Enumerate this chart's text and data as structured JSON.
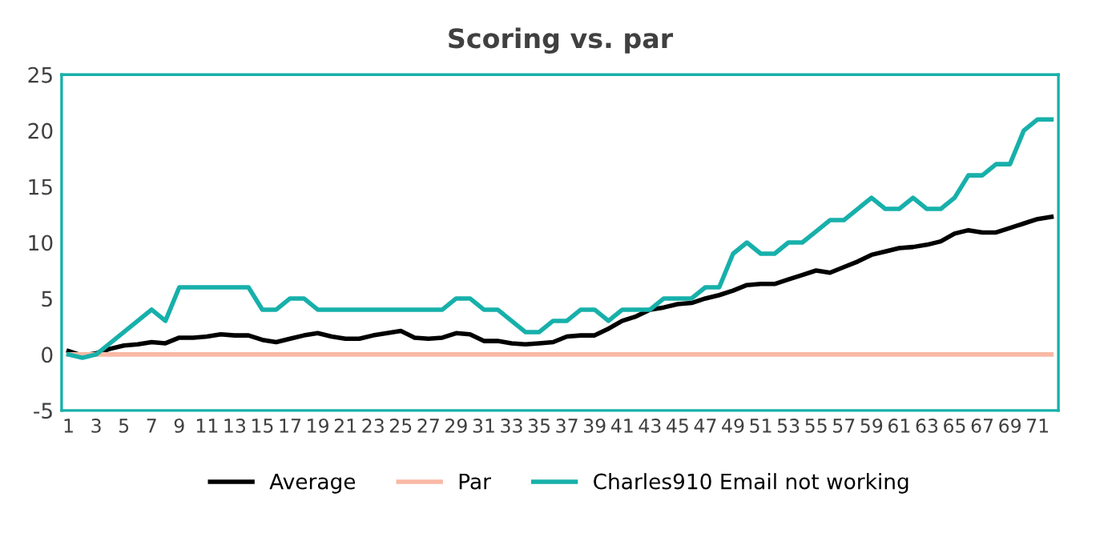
{
  "chart_data": {
    "type": "line",
    "title": "Scoring vs. par",
    "categories": [
      "1",
      null,
      "3",
      null,
      "5",
      null,
      "7",
      null,
      "9",
      null,
      "11",
      null,
      "13",
      null,
      "15",
      null,
      "17",
      null,
      "19",
      null,
      "21",
      null,
      "23",
      null,
      "25",
      null,
      "27",
      null,
      "29",
      null,
      "31",
      null,
      "33",
      null,
      "35",
      null,
      "37",
      null,
      "39",
      null,
      "41",
      null,
      "43",
      null,
      "45",
      null,
      "47",
      null,
      "49",
      null,
      "51",
      null,
      "53",
      null,
      "55",
      null,
      "57",
      null,
      "59",
      null,
      "61",
      null,
      "63",
      null,
      "65",
      null,
      "67",
      null,
      "69",
      null,
      "71",
      null
    ],
    "series": [
      {
        "name": "Average",
        "color": "#000000",
        "values": [
          0.3,
          -0.1,
          0.1,
          0.5,
          0.8,
          0.9,
          1.1,
          1.0,
          1.5,
          1.5,
          1.6,
          1.8,
          1.7,
          1.7,
          1.3,
          1.1,
          1.4,
          1.7,
          1.9,
          1.6,
          1.4,
          1.4,
          1.7,
          1.9,
          2.1,
          1.5,
          1.4,
          1.5,
          1.9,
          1.8,
          1.2,
          1.2,
          1.0,
          0.9,
          1.0,
          1.1,
          1.6,
          1.7,
          1.7,
          2.3,
          3.0,
          3.4,
          4.0,
          4.2,
          4.5,
          4.6,
          5.0,
          5.3,
          5.7,
          6.2,
          6.3,
          6.3,
          6.7,
          7.1,
          7.5,
          7.3,
          7.8,
          8.3,
          8.9,
          9.2,
          9.5,
          9.6,
          9.8,
          10.1,
          10.8,
          11.1,
          10.9,
          10.9,
          11.3,
          11.7,
          12.1,
          12.3
        ]
      },
      {
        "name": "Par",
        "color": "#f8b9a6",
        "values": [
          0,
          0,
          0,
          0,
          0,
          0,
          0,
          0,
          0,
          0,
          0,
          0,
          0,
          0,
          0,
          0,
          0,
          0,
          0,
          0,
          0,
          0,
          0,
          0,
          0,
          0,
          0,
          0,
          0,
          0,
          0,
          0,
          0,
          0,
          0,
          0,
          0,
          0,
          0,
          0,
          0,
          0,
          0,
          0,
          0,
          0,
          0,
          0,
          0,
          0,
          0,
          0,
          0,
          0,
          0,
          0,
          0,
          0,
          0,
          0,
          0,
          0,
          0,
          0,
          0,
          0,
          0,
          0,
          0,
          0,
          0,
          0
        ]
      },
      {
        "name": "Charles910 Email not working",
        "color": "#17b0aa",
        "values": [
          0,
          -0.3,
          0,
          1,
          2,
          3,
          4,
          3,
          6,
          6,
          6,
          6,
          6,
          6,
          4,
          4,
          5,
          5,
          4,
          4,
          4,
          4,
          4,
          4,
          4,
          4,
          4,
          4,
          5,
          5,
          4,
          4,
          3,
          2,
          2,
          3,
          3,
          4,
          4,
          3,
          4,
          4,
          4,
          5,
          5,
          5,
          6,
          6,
          9,
          10,
          9,
          9,
          10,
          10,
          11,
          12,
          12,
          13,
          14,
          13,
          13,
          14,
          13,
          13,
          14,
          16,
          16,
          17,
          17,
          20,
          21,
          21
        ]
      }
    ],
    "ylim": [
      -5,
      25
    ],
    "yticks": [
      -5,
      0,
      5,
      10,
      15,
      20,
      25
    ],
    "grid": false,
    "legend": "bottom"
  }
}
